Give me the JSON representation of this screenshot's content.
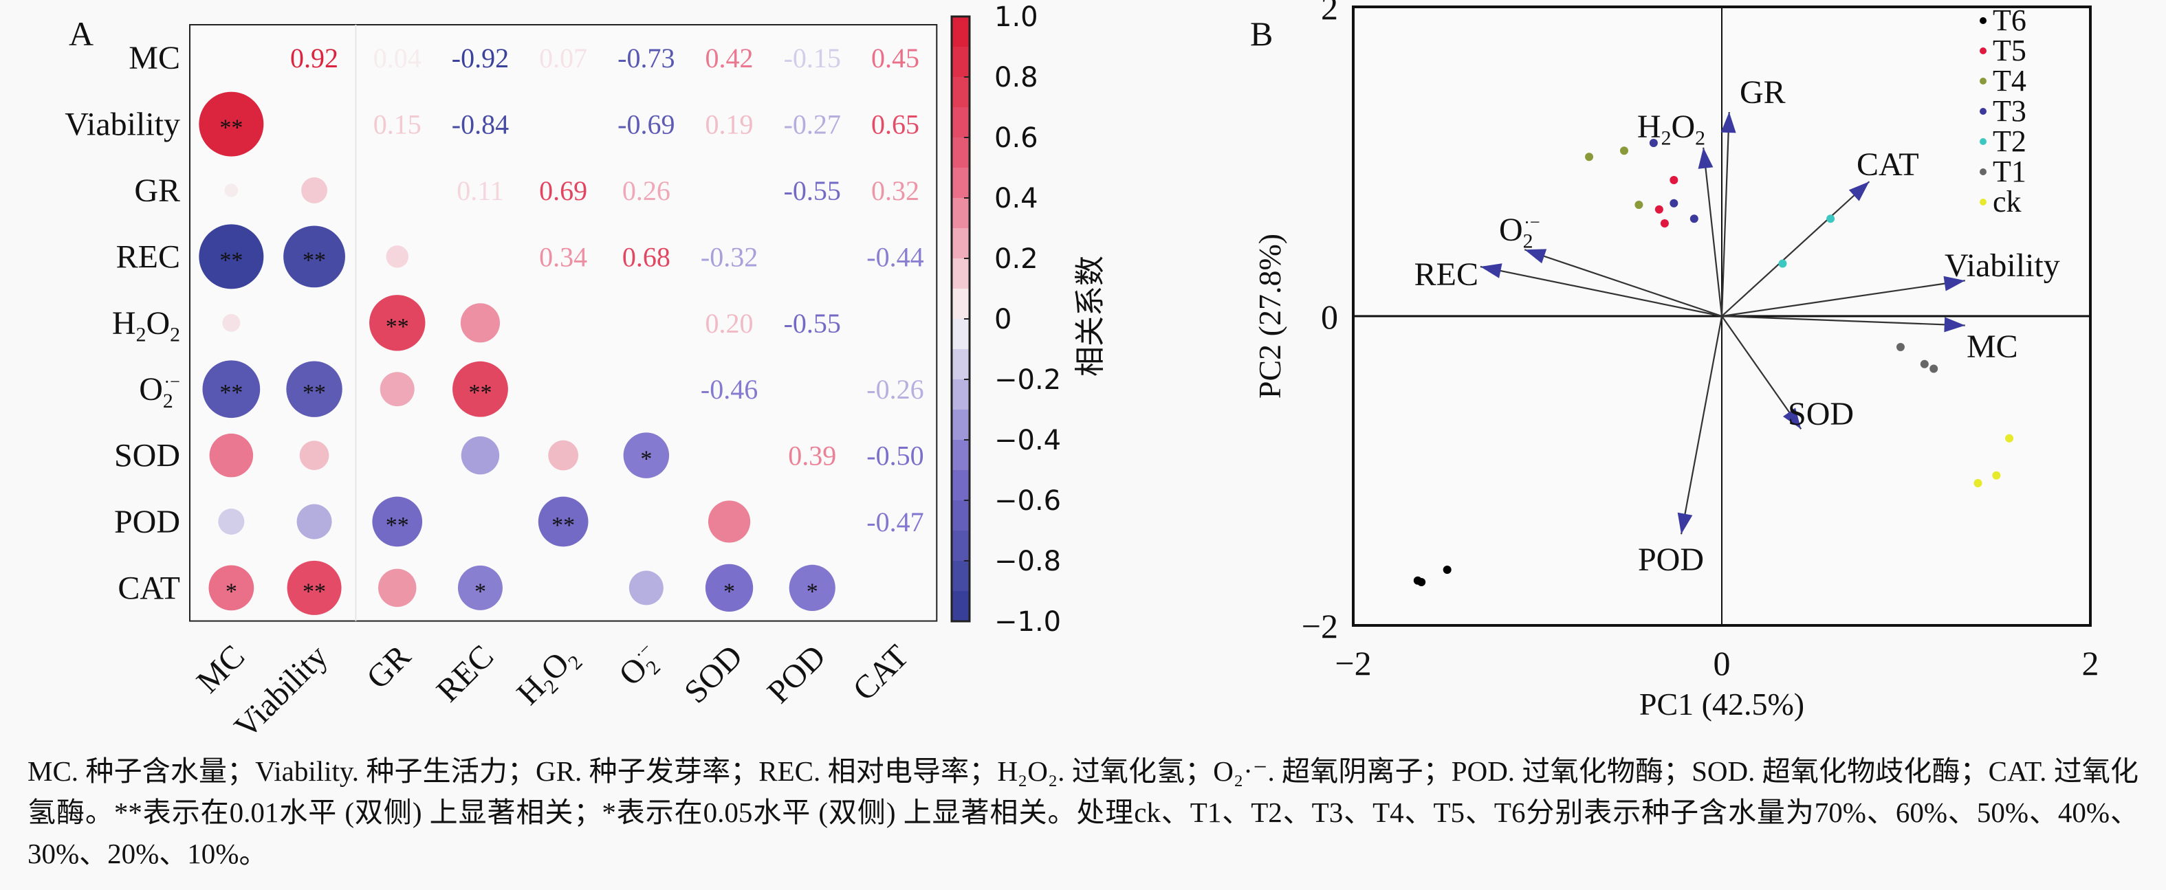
{
  "chart_data": [
    {
      "type": "heatmap",
      "panel_label": "A",
      "variables": [
        "MC",
        "Viability",
        "GR",
        "REC",
        "H2O2",
        "O2·−",
        "SOD",
        "POD",
        "CAT"
      ],
      "upper_values": [
        [
          null,
          0.92,
          0.04,
          -0.92,
          0.07,
          -0.73,
          0.42,
          -0.15,
          0.45
        ],
        [
          null,
          null,
          0.15,
          -0.84,
          null,
          -0.69,
          0.19,
          -0.27,
          0.65
        ],
        [
          null,
          null,
          null,
          0.11,
          0.69,
          0.26,
          null,
          -0.55,
          0.32
        ],
        [
          null,
          null,
          null,
          null,
          0.34,
          0.68,
          -0.32,
          null,
          -0.44
        ],
        [
          null,
          null,
          null,
          null,
          null,
          null,
          0.2,
          -0.55,
          null
        ],
        [
          null,
          null,
          null,
          null,
          null,
          null,
          -0.46,
          null,
          -0.26
        ],
        [
          null,
          null,
          null,
          null,
          null,
          null,
          null,
          0.39,
          -0.5
        ],
        [
          null,
          null,
          null,
          null,
          null,
          null,
          null,
          null,
          -0.47
        ],
        [
          null,
          null,
          null,
          null,
          null,
          null,
          null,
          null,
          null
        ]
      ],
      "significance": [
        [
          "Viability",
          "MC",
          "**"
        ],
        [
          "REC",
          "MC",
          "**"
        ],
        [
          "REC",
          "Viability",
          "**"
        ],
        [
          "H2O2",
          "GR",
          "**"
        ],
        [
          "O2·−",
          "MC",
          "**"
        ],
        [
          "O2·−",
          "Viability",
          "**"
        ],
        [
          "O2·−",
          "REC",
          "**"
        ],
        [
          "SOD",
          "O2·−",
          "*"
        ],
        [
          "POD",
          "GR",
          "**"
        ],
        [
          "POD",
          "H2O2",
          "**"
        ],
        [
          "CAT",
          "MC",
          "*"
        ],
        [
          "CAT",
          "Viability",
          "**"
        ],
        [
          "CAT",
          "REC",
          "*"
        ],
        [
          "CAT",
          "SOD",
          "*"
        ],
        [
          "CAT",
          "POD",
          "*"
        ]
      ],
      "colorbar": {
        "title": "相关系数",
        "range": [
          -1,
          1
        ],
        "ticks": [
          "1.0",
          "0.8",
          "0.6",
          "0.4",
          "0.2",
          "0",
          "−0.2",
          "−0.4",
          "−0.6",
          "−0.8",
          "−1.0"
        ],
        "colors": {
          "neg": "#2f3a92",
          "mid_neg": "#7a6fcb",
          "zero": "#f7f7f7",
          "mid_pos": "#e8607c",
          "pos": "#d81a32"
        }
      }
    },
    {
      "type": "scatter",
      "panel_label": "B",
      "xlabel": "PC1 (42.5%)",
      "ylabel": "PC2 (27.8%)",
      "xlim": [
        -2,
        2
      ],
      "ylim": [
        -2,
        2
      ],
      "xticks": [
        "−2",
        "0",
        "2"
      ],
      "yticks": [
        "2",
        "0",
        "−2"
      ],
      "legend_position": "top-right",
      "series": [
        {
          "name": "T6",
          "color": "#000000",
          "points": [
            [
              -1.65,
              -1.71
            ],
            [
              -1.63,
              -1.72
            ],
            [
              -1.49,
              -1.64
            ]
          ]
        },
        {
          "name": "T5",
          "color": "#e0173f",
          "points": [
            [
              -0.26,
              0.88
            ],
            [
              -0.34,
              0.69
            ],
            [
              -0.31,
              0.6
            ]
          ]
        },
        {
          "name": "T4",
          "color": "#8a9a3a",
          "points": [
            [
              -0.72,
              1.03
            ],
            [
              -0.53,
              1.07
            ],
            [
              -0.45,
              0.72
            ]
          ]
        },
        {
          "name": "T3",
          "color": "#3b3a9c",
          "points": [
            [
              -0.37,
              1.12
            ],
            [
              -0.26,
              0.73
            ],
            [
              -0.15,
              0.63
            ]
          ]
        },
        {
          "name": "T2",
          "color": "#3cc8c0",
          "points": [
            [
              0.33,
              0.34
            ],
            [
              0.59,
              0.63
            ]
          ]
        },
        {
          "name": "T1",
          "color": "#666666",
          "points": [
            [
              0.97,
              -0.2
            ],
            [
              1.1,
              -0.31
            ],
            [
              1.15,
              -0.34
            ]
          ]
        },
        {
          "name": "ck",
          "color": "#e6ea2a",
          "points": [
            [
              1.56,
              -0.79
            ],
            [
              1.49,
              -1.03
            ],
            [
              1.39,
              -1.08
            ]
          ]
        }
      ],
      "loadings": [
        {
          "name": "GR",
          "x": 0.04,
          "y": 1.32
        },
        {
          "name": "H2O2",
          "x": -0.1,
          "y": 1.09
        },
        {
          "name": "CAT",
          "x": 0.8,
          "y": 0.87
        },
        {
          "name": "O2·−",
          "x": -1.07,
          "y": 0.43
        },
        {
          "name": "REC",
          "x": -1.31,
          "y": 0.32
        },
        {
          "name": "Viability",
          "x": 1.32,
          "y": 0.23
        },
        {
          "name": "MC",
          "x": 1.32,
          "y": -0.06
        },
        {
          "name": "SOD",
          "x": 0.43,
          "y": -0.73
        },
        {
          "name": "POD",
          "x": -0.22,
          "y": -1.41
        }
      ],
      "arrow_color": "#3a3aa0"
    }
  ],
  "caption": "MC. 种子含水量；Viability. 种子生活力；GR. 种子发芽率；REC. 相对电导率；H₂O₂. 过氧化氢；O₂·⁻. 超氧阴离子；POD. 过氧化物酶；SOD. 超氧化物歧化酶；CAT. 过氧化氢酶。**表示在0.01水平 (双侧) 上显著相关；*表示在0.05水平 (双侧) 上显著相关。处理ck、T1、T2、T3、T4、T5、T6分别表示种子含水量为70%、60%、50%、40%、30%、20%、10%。"
}
